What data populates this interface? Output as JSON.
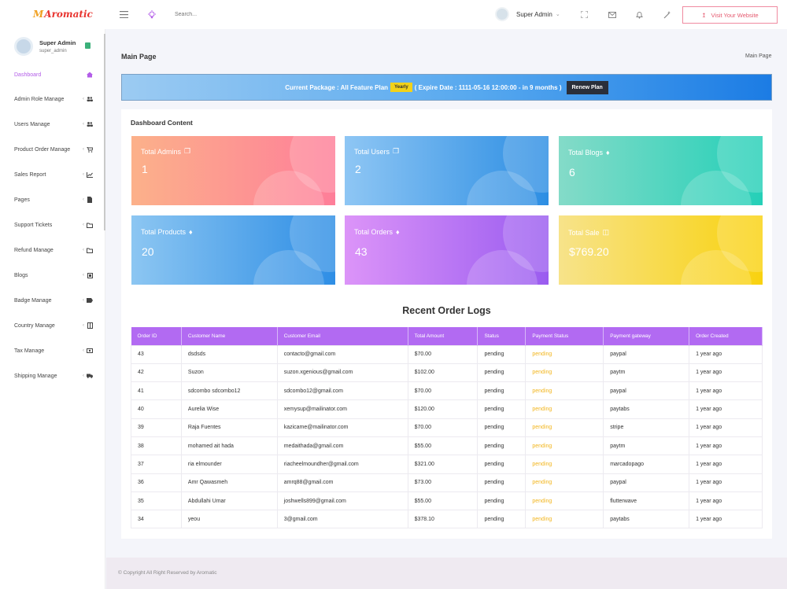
{
  "app": {
    "logo_mark": "M",
    "logo_text": "Aromatic"
  },
  "topbar": {
    "search_placeholder": "Search...",
    "user_name": "Super Admin",
    "visit_label": "Visit Your Website",
    "icons": [
      "menu-icon",
      "bulb-icon",
      "fullscreen-icon",
      "mail-icon",
      "bell-icon",
      "magic-icon"
    ]
  },
  "sidebar": {
    "profile_name": "Super Admin",
    "profile_user": "super_admin",
    "items": [
      {
        "label": "Dashboard",
        "active": true
      },
      {
        "label": "Admin Role Manage"
      },
      {
        "label": "Users Manage"
      },
      {
        "label": "Product Order Manage"
      },
      {
        "label": "Sales Report"
      },
      {
        "label": "Pages"
      },
      {
        "label": "Support Tickets"
      },
      {
        "label": "Refund Manage"
      },
      {
        "label": "Blogs"
      },
      {
        "label": "Badge Manage"
      },
      {
        "label": "Country Manage"
      },
      {
        "label": "Tax Manage"
      },
      {
        "label": "Shipping Manage"
      }
    ]
  },
  "page": {
    "title": "Main Page",
    "breadcrumb": "Main Page"
  },
  "banner": {
    "package_text": "Current Package : All Feature Plan",
    "yearly": "Yearly",
    "expire_text": "( Expire Date : 1111-05-16 12:00:00 - in 9 months )",
    "renew_label": "Renew Plan"
  },
  "dashboard": {
    "title": "Dashboard Content",
    "cards": [
      {
        "label": "Total Admins",
        "value": "1"
      },
      {
        "label": "Total Users",
        "value": "2"
      },
      {
        "label": "Total Blogs",
        "value": "6"
      },
      {
        "label": "Total Products",
        "value": "20"
      },
      {
        "label": "Total Orders",
        "value": "43"
      },
      {
        "label": "Total Sale",
        "value": "$769.20"
      }
    ]
  },
  "orders": {
    "title": "Recent Order Logs",
    "headers": [
      "Order ID",
      "Customer Name",
      "Customer Email",
      "Total Amount",
      "Status",
      "Payment Status",
      "Payment gateway",
      "Order Created"
    ],
    "rows": [
      [
        "43",
        "dsdsds",
        "contacto@gmail.com",
        "$70.00",
        "pending",
        "pending",
        "paypal",
        "1 year ago"
      ],
      [
        "42",
        "Suzon",
        "suzon.xgenious@gmail.com",
        "$102.00",
        "pending",
        "pending",
        "paytm",
        "1 year ago"
      ],
      [
        "41",
        "sdcombo sdcombo12",
        "sdcombo12@gmail.com",
        "$70.00",
        "pending",
        "pending",
        "paypal",
        "1 year ago"
      ],
      [
        "40",
        "Aurelia Wise",
        "xemysup@mailinator.com",
        "$120.00",
        "pending",
        "pending",
        "paytabs",
        "1 year ago"
      ],
      [
        "39",
        "Raja Fuentes",
        "kazicame@mailinator.com",
        "$70.00",
        "pending",
        "pending",
        "stripe",
        "1 year ago"
      ],
      [
        "38",
        "mohamed ait hada",
        "medaithada@gmail.com",
        "$55.00",
        "pending",
        "pending",
        "paytm",
        "1 year ago"
      ],
      [
        "37",
        "ria elmounder",
        "riacheelmoundher@gmail.com",
        "$321.00",
        "pending",
        "pending",
        "marcadopago",
        "1 year ago"
      ],
      [
        "36",
        "Amr Qawasmeh",
        "amrq88@gmail.com",
        "$73.00",
        "pending",
        "pending",
        "paypal",
        "1 year ago"
      ],
      [
        "35",
        "Abdullahi Umar",
        "joshwells899@gmail.com",
        "$55.00",
        "pending",
        "pending",
        "flutterwave",
        "1 year ago"
      ],
      [
        "34",
        "yeou",
        "3@gmail.com",
        "$378.10",
        "pending",
        "pending",
        "paytabs",
        "1 year ago"
      ]
    ]
  },
  "footer": {
    "copyright": "© Copyright All Right Reserved by Aromatic"
  },
  "colors": {
    "accent": "#b26af2",
    "pending_payment": "#f2b51d",
    "visit_button": "#e5596f"
  }
}
